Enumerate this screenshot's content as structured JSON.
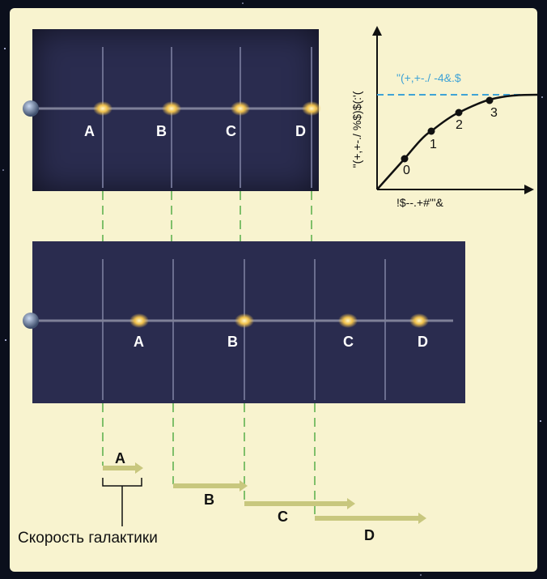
{
  "panels": {
    "top": {
      "galaxies": [
        "A",
        "B",
        "C",
        "D"
      ]
    },
    "bottom": {
      "galaxies": [
        "A",
        "B",
        "C",
        "D"
      ]
    }
  },
  "graph": {
    "dashed_label": "\"(+,+-./ -4&.$",
    "y_label": "\"(+,+-./ %$)$(:'(",
    "x_label": "!$--.+#\"'&",
    "points": [
      "0",
      "1",
      "2",
      "3"
    ]
  },
  "velocities": {
    "labels": [
      "A",
      "B",
      "C",
      "D"
    ],
    "caption": "Скорость галактики"
  },
  "colors": {
    "panel": "#2a2c4f",
    "card": "#f8f3cf",
    "guide_dash": "#7fbf6a",
    "arrow": "#c8c77e",
    "graph_dash": "#3fa3d6"
  }
}
